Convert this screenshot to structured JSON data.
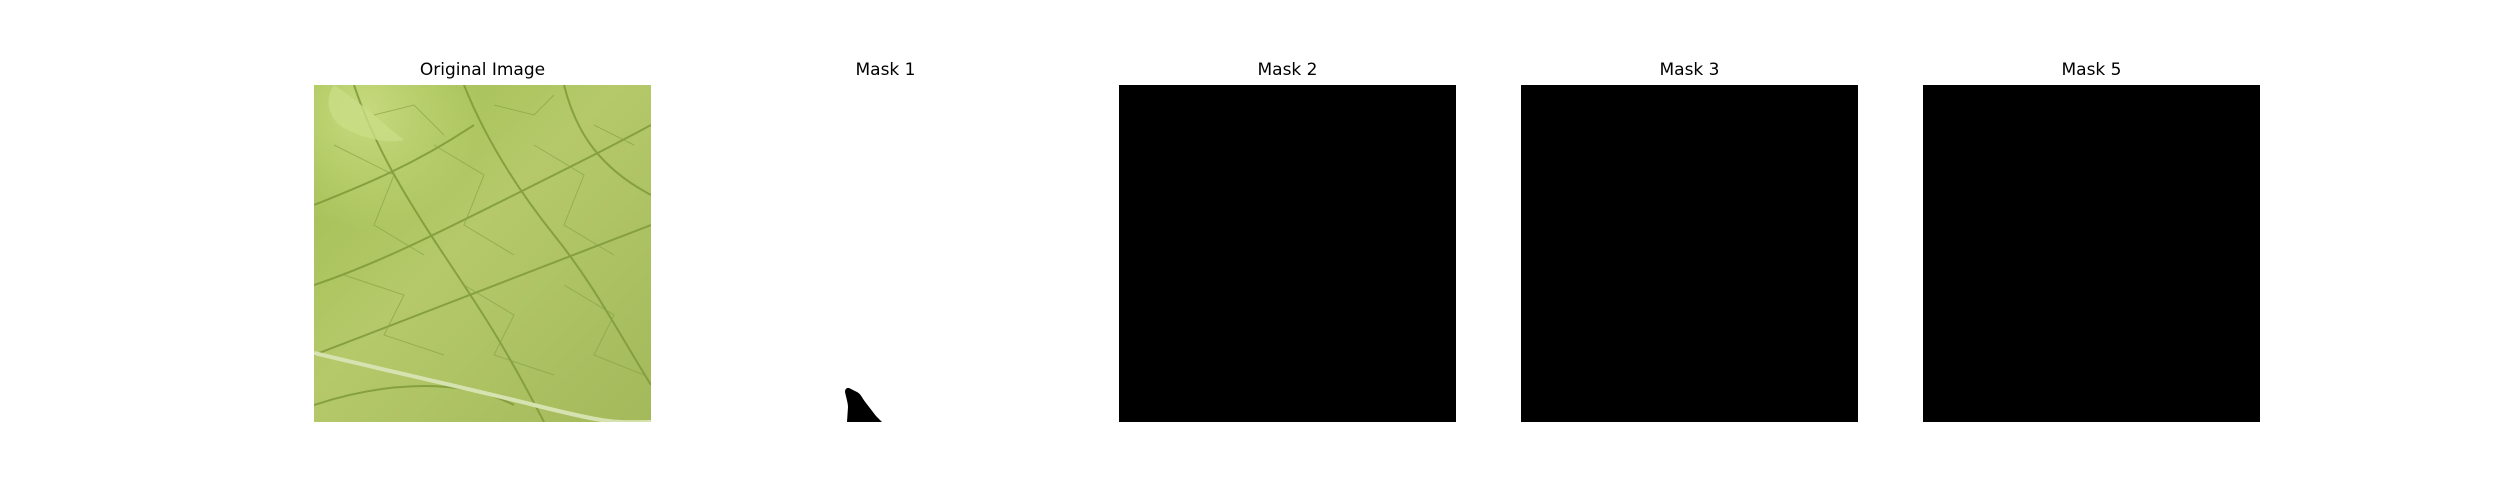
{
  "panels": [
    {
      "title": "Original Image",
      "image": "leaf-photo"
    },
    {
      "title": "Mask 1",
      "image": "mask-mostly-white"
    },
    {
      "title": "Mask 2",
      "image": "mask-black"
    },
    {
      "title": "Mask 3",
      "image": "mask-black"
    },
    {
      "title": "Mask 5",
      "image": "mask-black"
    }
  ],
  "colors": {
    "background": "#ffffff",
    "mask_black": "#000000",
    "leaf_green": "#a9c257"
  }
}
